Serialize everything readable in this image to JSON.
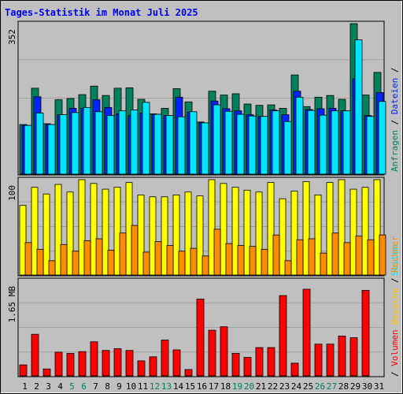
{
  "chart_data": [
    {
      "type": "bar",
      "title": "Tages-Statistik im Monat Juli 2025",
      "categories": [
        "1",
        "2",
        "3",
        "4",
        "5",
        "6",
        "7",
        "8",
        "9",
        "10",
        "11",
        "12",
        "13",
        "14",
        "15",
        "16",
        "17",
        "18",
        "19",
        "20",
        "21",
        "22",
        "23",
        "24",
        "25",
        "26",
        "27",
        "28",
        "29",
        "30",
        "31"
      ],
      "weekend_days": [
        5,
        6,
        12,
        13,
        19,
        20,
        26,
        27
      ],
      "ylabel_max": "352",
      "ylim": [
        0,
        352
      ],
      "right_label": [
        "Anfragen",
        " / ",
        "Dateien",
        " / ",
        "Seiten"
      ],
      "series": [
        {
          "name": "Anfragen",
          "color": "#00805c",
          "values": [
            116,
            201,
            118,
            174,
            177,
            186,
            206,
            184,
            201,
            202,
            175,
            141,
            154,
            200,
            169,
            122,
            194,
            185,
            188,
            164,
            161,
            162,
            154,
            232,
            158,
            180,
            184,
            175,
            352,
            185,
            238
          ]
        },
        {
          "name": "Dateien",
          "color": "#0024ff",
          "values": [
            114,
            181,
            116,
            139,
            154,
            154,
            174,
            156,
            141,
            137,
            143,
            140,
            137,
            180,
            145,
            120,
            171,
            153,
            148,
            139,
            135,
            150,
            139,
            194,
            151,
            153,
            154,
            148,
            223,
            137,
            191
          ]
        },
        {
          "name": "Seiten",
          "color": "#00e5ff",
          "values": [
            114,
            143,
            116,
            139,
            144,
            156,
            146,
            137,
            148,
            150,
            168,
            140,
            137,
            134,
            146,
            120,
            162,
            147,
            140,
            136,
            135,
            148,
            123,
            180,
            149,
            138,
            148,
            148,
            314,
            135,
            170
          ]
        }
      ]
    },
    {
      "type": "bar",
      "ylabel_max": "100",
      "ylim": [
        0,
        100
      ],
      "right_label": [
        "Besuche",
        " / ",
        "Rechner"
      ],
      "series": [
        {
          "name": "Besuche",
          "color": "#ffff00",
          "values": [
            73,
            92,
            85,
            95,
            87,
            103,
            96,
            90,
            92,
            97,
            84,
            82,
            82,
            84,
            87,
            83,
            104,
            96,
            92,
            89,
            87,
            97,
            80,
            88,
            98,
            84,
            97,
            102,
            90,
            92,
            104
          ]
        },
        {
          "name": "Rechner",
          "color": "#ff8c00",
          "values": [
            34,
            27,
            15,
            32,
            25,
            36,
            38,
            26,
            44,
            52,
            24,
            35,
            31,
            25,
            28,
            20,
            48,
            33,
            31,
            30,
            27,
            42,
            15,
            37,
            38,
            23,
            44,
            34,
            41,
            37,
            42
          ]
        }
      ]
    },
    {
      "type": "bar",
      "ylabel_max": "1.65 MB",
      "ylim": [
        0,
        1.65
      ],
      "right_label": [
        "Volumen"
      ],
      "series": [
        {
          "name": "Volumen",
          "color": "#ff0000",
          "values": [
            0.19,
            0.72,
            0.12,
            0.41,
            0.39,
            0.42,
            0.59,
            0.44,
            0.47,
            0.44,
            0.26,
            0.33,
            0.62,
            0.45,
            0.11,
            1.33,
            0.79,
            0.85,
            0.39,
            0.32,
            0.49,
            0.49,
            1.39,
            0.22,
            1.5,
            0.55,
            0.55,
            0.69,
            0.66,
            1.48,
            0.0
          ]
        }
      ]
    }
  ]
}
